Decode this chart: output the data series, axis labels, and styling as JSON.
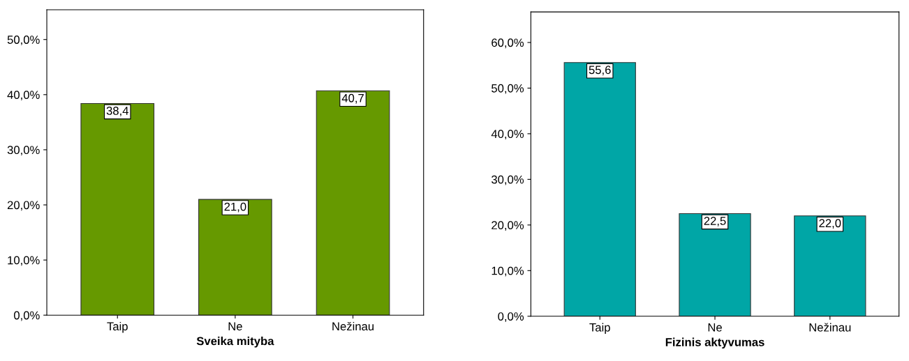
{
  "chart_data": [
    {
      "type": "bar",
      "xlabel": "Sveika mityba",
      "categories": [
        "Taip",
        "Ne",
        "Nežinau"
      ],
      "values": [
        38.4,
        21.0,
        40.7
      ],
      "value_labels": [
        "38,4",
        "21,0",
        "40,7"
      ],
      "color": "#669900",
      "ylim": [
        0,
        55.4
      ],
      "yticks": [
        {
          "value": 0,
          "label": "0,0%"
        },
        {
          "value": 10,
          "label": "10,0%"
        },
        {
          "value": 20,
          "label": "20,0%"
        },
        {
          "value": 30,
          "label": "30,0%"
        },
        {
          "value": 40,
          "label": "40,0%"
        },
        {
          "value": 50,
          "label": "50,0%"
        }
      ],
      "grid": false,
      "legend": false
    },
    {
      "type": "bar",
      "xlabel": "Fizinis aktyvumas",
      "categories": [
        "Taip",
        "Ne",
        "Nežinau"
      ],
      "values": [
        55.6,
        22.5,
        22.0
      ],
      "value_labels": [
        "55,6",
        "22,5",
        "22,0"
      ],
      "color": "#00a6a6",
      "ylim": [
        0,
        66.7
      ],
      "yticks": [
        {
          "value": 0,
          "label": "0,0%"
        },
        {
          "value": 10,
          "label": "10,0%"
        },
        {
          "value": 20,
          "label": "20,0%"
        },
        {
          "value": 30,
          "label": "30,0%"
        },
        {
          "value": 40,
          "label": "40,0%"
        },
        {
          "value": 50,
          "label": "50,0%"
        },
        {
          "value": 60,
          "label": "60,0%"
        }
      ],
      "grid": false,
      "legend": false
    }
  ]
}
